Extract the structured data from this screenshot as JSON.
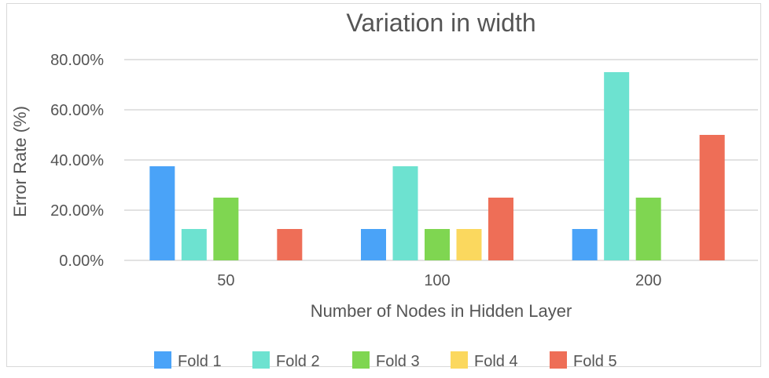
{
  "chart_data": {
    "type": "bar",
    "title": "Variation in width",
    "xlabel": "Number of Nodes in Hidden Layer",
    "ylabel": "Error Rate (%)",
    "categories": [
      "50",
      "100",
      "200"
    ],
    "ylim": [
      0,
      80
    ],
    "yticks": [
      0,
      20,
      40,
      60,
      80
    ],
    "ytick_labels": [
      "0.00%",
      "20.00%",
      "40.00%",
      "60.00%",
      "80.00%"
    ],
    "grid": true,
    "legend_position": "bottom",
    "series": [
      {
        "name": "Fold 1",
        "color": "#4aa3f8",
        "values": [
          37.5,
          12.5,
          12.5
        ]
      },
      {
        "name": "Fold 2",
        "color": "#6de2d0",
        "values": [
          12.5,
          37.5,
          75
        ]
      },
      {
        "name": "Fold 3",
        "color": "#7fd651",
        "values": [
          25,
          12.5,
          25
        ]
      },
      {
        "name": "Fold 4",
        "color": "#fbd85e",
        "values": [
          0,
          12.5,
          0
        ]
      },
      {
        "name": "Fold 5",
        "color": "#ee6e57",
        "values": [
          12.5,
          25,
          50
        ]
      }
    ]
  }
}
